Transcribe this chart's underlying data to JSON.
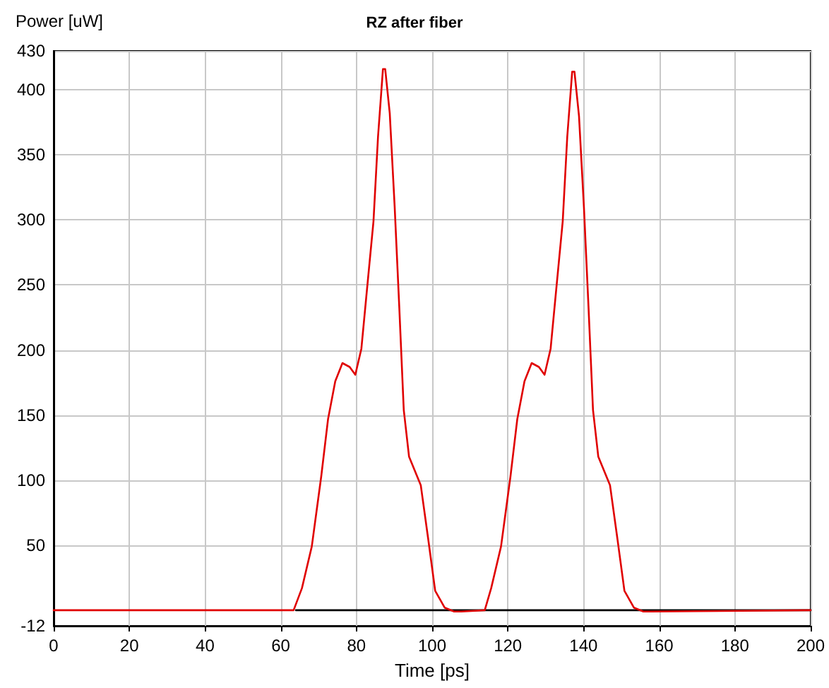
{
  "chart_data": {
    "type": "line",
    "title": "RZ after fiber",
    "xlabel": "Time [ps]",
    "ylabel": "Power [uW]",
    "xlim": [
      0,
      200
    ],
    "xticks": [
      0,
      20,
      40,
      60,
      80,
      100,
      120,
      140,
      160,
      180,
      200
    ],
    "ylim": [
      -12,
      430
    ],
    "yticks": [
      -12,
      50,
      100,
      150,
      200,
      250,
      300,
      350,
      400,
      430
    ],
    "grid": true,
    "marker": "none",
    "line_style": "solid",
    "series": [
      {
        "color": "#000000",
        "x": [
          64,
          200
        ],
        "values": [
          0,
          0
        ]
      },
      {
        "color": "#e00000",
        "x": [
          0,
          63.4,
          65.6,
          68.2,
          70.7,
          72.5,
          74.4,
          76.3,
          78.2,
          79.7,
          81.3,
          82.6,
          84.5,
          85.7,
          87.0,
          87.6,
          88.8,
          90.1,
          91.3,
          92.5,
          93.9,
          97.0,
          98.9,
          100.8,
          103.3,
          105.8,
          107.7,
          113.9,
          115.6,
          118.2,
          120.7,
          122.5,
          124.4,
          126.3,
          128.2,
          129.7,
          131.3,
          132.6,
          134.5,
          135.7,
          137.0,
          137.6,
          138.8,
          140.1,
          141.3,
          142.5,
          143.9,
          147.0,
          148.9,
          150.8,
          153.3,
          155.8,
          157.7,
          200
        ],
        "values": [
          0,
          0,
          17,
          49,
          103,
          147,
          176,
          190,
          187,
          181,
          201,
          241,
          299,
          364,
          416,
          416,
          382,
          310,
          234,
          154,
          118,
          96,
          56,
          15,
          2,
          -1,
          -1,
          0,
          17,
          49,
          103,
          147,
          176,
          190,
          187,
          181,
          201,
          241,
          299,
          364,
          414,
          414,
          380,
          310,
          234,
          154,
          118,
          96,
          56,
          15,
          2,
          -1,
          -1,
          0
        ]
      }
    ]
  }
}
